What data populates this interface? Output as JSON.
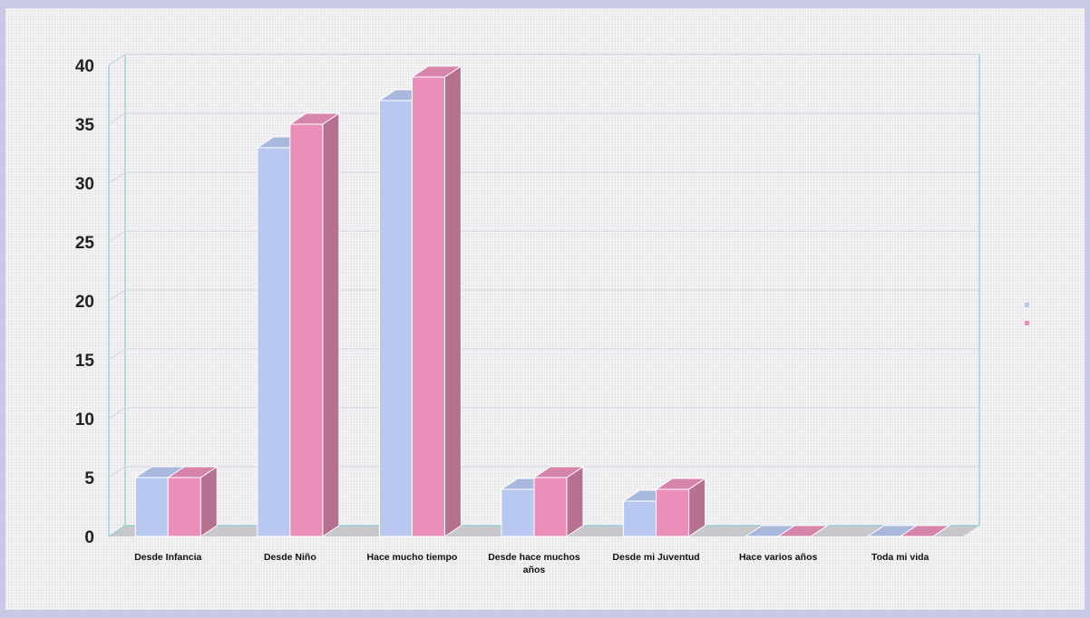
{
  "chart_data": {
    "type": "bar",
    "categories": [
      [
        "Desde Infancia"
      ],
      [
        "Desde Niño"
      ],
      [
        "Hace mucho tiempo"
      ],
      [
        "Desde hace muchos",
        "años"
      ],
      [
        "Desde mi Juventud"
      ],
      [
        "Hace varios años"
      ],
      [
        "Toda mi vida"
      ]
    ],
    "series": [
      {
        "color": "#b8c8f0",
        "values": [
          5,
          33,
          37,
          4,
          3,
          0,
          0
        ]
      },
      {
        "color": "#e98fb9",
        "values": [
          5,
          35,
          39,
          5,
          4,
          0,
          0
        ]
      }
    ],
    "ylim": [
      0,
      40
    ],
    "yticks": [
      0,
      5,
      10,
      15,
      20,
      25,
      30,
      35,
      40
    ],
    "grid": true,
    "legend": "right"
  },
  "colors": {
    "background": "#c9c8e6",
    "panel": "#f4f4f7",
    "wall_border": "#8fcfd8",
    "floor": "#c7c7cc"
  }
}
